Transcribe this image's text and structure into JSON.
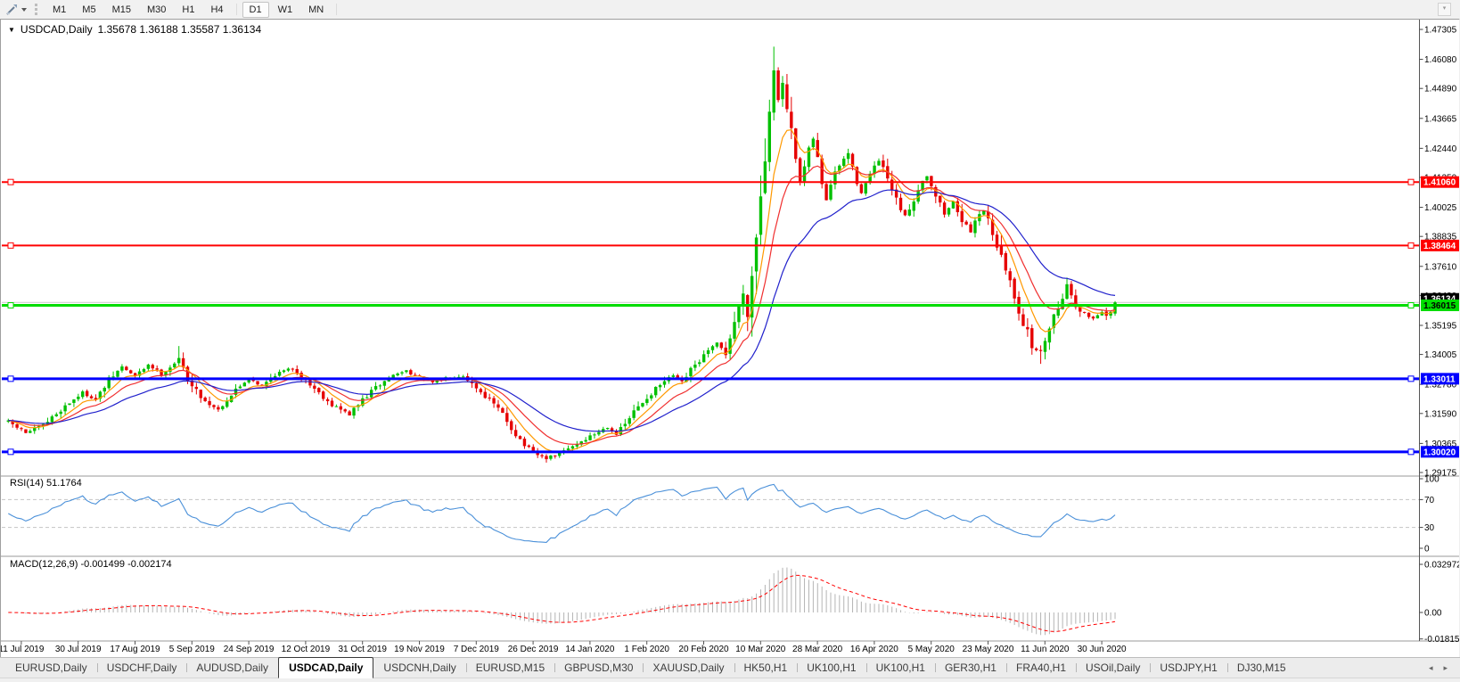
{
  "toolbar": {
    "tool_icon": "chart-annotation-tool-icon",
    "dropdown_icon": "caret-down-icon",
    "timeframes": [
      "M1",
      "M5",
      "M15",
      "M30",
      "H1",
      "H4",
      "D1",
      "W1",
      "MN"
    ],
    "active_timeframe": "D1"
  },
  "chart": {
    "title": {
      "marker": "▼",
      "symbol_period": "USDCAD,Daily",
      "ohlc": "1.35678 1.36188 1.35587 1.36134"
    },
    "price_axis": {
      "tick_labels": [
        "1.47305",
        "1.46080",
        "1.44890",
        "1.43665",
        "1.42440",
        "1.41250",
        "1.40025",
        "1.38835",
        "1.37610",
        "1.36420",
        "1.35195",
        "1.34005",
        "1.32780",
        "1.31590",
        "1.30365",
        "1.29175"
      ]
    },
    "date_axis": {
      "tick_labels": [
        "11 Jul 2019",
        "30 Jul 2019",
        "17 Aug 2019",
        "5 Sep 2019",
        "24 Sep 2019",
        "12 Oct 2019",
        "31 Oct 2019",
        "19 Nov 2019",
        "7 Dec 2019",
        "26 Dec 2019",
        "14 Jan 2020",
        "1 Feb 2020",
        "20 Feb 2020",
        "10 Mar 2020",
        "28 Mar 2020",
        "16 Apr 2020",
        "5 May 2020",
        "23 May 2020",
        "11 Jun 2020",
        "30 Jun 2020"
      ]
    },
    "current_price": {
      "value": 1.36134,
      "label": "1.36134",
      "chip_color": "#000000",
      "text_color": "#FFFFFF"
    },
    "rsi": {
      "label": "RSI(14) 51.1764",
      "axis_labels": [
        "100",
        "70",
        "30",
        "0"
      ],
      "axis_values": [
        100,
        70,
        30,
        0
      ],
      "level_lines": [
        70,
        30
      ],
      "line_color": "#4A90D9"
    },
    "macd": {
      "label": "MACD(12,26,9) -0.001499 -0.002174",
      "axis_labels": [
        "0.032972",
        "0.00",
        "-0.01815"
      ],
      "axis_values": [
        0.032972,
        0,
        -0.01815
      ],
      "histogram_color": "#b4b4b4",
      "signal_color": "#FF0000"
    }
  },
  "chart_data": {
    "type": "candlestick",
    "symbol": "USDCAD",
    "period": "Daily",
    "last_ohlc": {
      "open": 1.35678,
      "high": 1.36188,
      "low": 1.35587,
      "close": 1.36134
    },
    "y_range": {
      "min": 1.29175,
      "max": 1.47305
    },
    "x_range": {
      "start": "11 Jul 2019",
      "end": "early Jul 2020"
    },
    "candle_count": 254,
    "colors": {
      "bull": "#00C000",
      "bear": "#E60000",
      "bid_line": "#C8C8C8"
    },
    "moving_averages": [
      {
        "name": "fast-ma",
        "period": 7,
        "color": "#FF9900"
      },
      {
        "name": "medium-ma",
        "period": 14,
        "color": "#F03030"
      },
      {
        "name": "slow-ma",
        "period": 30,
        "color": "#2121CC"
      }
    ],
    "horizontal_lines": [
      {
        "price": 1.4106,
        "label": "1.41060",
        "color": "#FF0000",
        "width": 2,
        "label_text_color": "#FFFFFF"
      },
      {
        "price": 1.38464,
        "label": "1.38464",
        "color": "#FF0000",
        "width": 2,
        "label_text_color": "#FFFFFF"
      },
      {
        "price": 1.36015,
        "label": "1.36015",
        "color": "#00DC00",
        "width": 3,
        "label_text_color": "#000000"
      },
      {
        "price": 1.33011,
        "label": "1.33011",
        "color": "#0000FF",
        "width": 3,
        "label_text_color": "#FFFFFF"
      },
      {
        "price": 1.3002,
        "label": "1.30020",
        "color": "#0000FF",
        "width": 3,
        "label_text_color": "#FFFFFF"
      }
    ],
    "price_path_anchors": [
      [
        0,
        1.3125
      ],
      [
        4,
        1.308
      ],
      [
        8,
        1.311
      ],
      [
        13,
        1.319
      ],
      [
        17,
        1.3245
      ],
      [
        20,
        1.3215
      ],
      [
        23,
        1.3295
      ],
      [
        26,
        1.335
      ],
      [
        29,
        1.331
      ],
      [
        32,
        1.336
      ],
      [
        35,
        1.332
      ],
      [
        39,
        1.338
      ],
      [
        42,
        1.327
      ],
      [
        45,
        1.321
      ],
      [
        48,
        1.3175
      ],
      [
        52,
        1.3255
      ],
      [
        55,
        1.3305
      ],
      [
        58,
        1.327
      ],
      [
        61,
        1.332
      ],
      [
        65,
        1.3345
      ],
      [
        68,
        1.3295
      ],
      [
        71,
        1.3245
      ],
      [
        74,
        1.3195
      ],
      [
        78,
        1.3155
      ],
      [
        81,
        1.3215
      ],
      [
        84,
        1.3265
      ],
      [
        88,
        1.3315
      ],
      [
        91,
        1.3335
      ],
      [
        94,
        1.3305
      ],
      [
        97,
        1.3285
      ],
      [
        100,
        1.3305
      ],
      [
        104,
        1.3315
      ],
      [
        107,
        1.3265
      ],
      [
        110,
        1.3215
      ],
      [
        113,
        1.3155
      ],
      [
        116,
        1.3075
      ],
      [
        118,
        1.303
      ],
      [
        120,
        1.2995
      ],
      [
        123,
        1.2975
      ],
      [
        126,
        1.2995
      ],
      [
        129,
        1.3025
      ],
      [
        131,
        1.3045
      ],
      [
        134,
        1.3075
      ],
      [
        137,
        1.3105
      ],
      [
        139,
        1.3075
      ],
      [
        141,
        1.3115
      ],
      [
        143,
        1.3165
      ],
      [
        146,
        1.3225
      ],
      [
        149,
        1.3275
      ],
      [
        152,
        1.3315
      ],
      [
        154,
        1.3285
      ],
      [
        156,
        1.3335
      ],
      [
        159,
        1.3395
      ],
      [
        162,
        1.3445
      ],
      [
        164,
        1.3405
      ],
      [
        166,
        1.3535
      ],
      [
        168,
        1.3655
      ],
      [
        169,
        1.3585
      ],
      [
        170,
        1.3725
      ],
      [
        171,
        1.3905
      ],
      [
        172,
        1.4055
      ],
      [
        173,
        1.4235
      ],
      [
        174,
        1.4425
      ],
      [
        175,
        1.4585
      ],
      [
        176,
        1.4435
      ],
      [
        177,
        1.4515
      ],
      [
        178,
        1.4385
      ],
      [
        179,
        1.4295
      ],
      [
        180,
        1.4185
      ],
      [
        181,
        1.4105
      ],
      [
        182,
        1.4165
      ],
      [
        183,
        1.4235
      ],
      [
        184,
        1.4285
      ],
      [
        185,
        1.4195
      ],
      [
        186,
        1.4105
      ],
      [
        187,
        1.4035
      ],
      [
        188,
        1.4095
      ],
      [
        190,
        1.4175
      ],
      [
        192,
        1.4225
      ],
      [
        193,
        1.4155
      ],
      [
        195,
        1.4065
      ],
      [
        197,
        1.4135
      ],
      [
        199,
        1.4195
      ],
      [
        201,
        1.4115
      ],
      [
        203,
        1.4025
      ],
      [
        205,
        1.3965
      ],
      [
        207,
        1.4035
      ],
      [
        208,
        1.4085
      ],
      [
        210,
        1.4135
      ],
      [
        212,
        1.4055
      ],
      [
        214,
        1.3975
      ],
      [
        216,
        1.4025
      ],
      [
        218,
        1.3955
      ],
      [
        220,
        1.3895
      ],
      [
        221,
        1.3955
      ],
      [
        223,
        1.3995
      ],
      [
        225,
        1.3905
      ],
      [
        227,
        1.3795
      ],
      [
        229,
        1.3695
      ],
      [
        231,
        1.3585
      ],
      [
        233,
        1.3485
      ],
      [
        234,
        1.3435
      ],
      [
        236,
        1.3405
      ],
      [
        238,
        1.3525
      ],
      [
        240,
        1.3595
      ],
      [
        242,
        1.3685
      ],
      [
        244,
        1.3605
      ],
      [
        246,
        1.3565
      ],
      [
        248,
        1.3548
      ],
      [
        250,
        1.3578
      ],
      [
        251,
        1.3558
      ],
      [
        252,
        1.3568
      ],
      [
        253,
        1.36134
      ]
    ],
    "wick_overrides": [
      {
        "i": 39,
        "h": 1.3435
      },
      {
        "i": 123,
        "l": 1.2958
      },
      {
        "i": 175,
        "h": 1.466
      },
      {
        "i": 236,
        "l": 1.3362
      },
      {
        "i": 242,
        "h": 1.3715
      }
    ],
    "indicators": [
      {
        "name": "RSI",
        "params": [
          14
        ],
        "current_value": 51.1764,
        "levels": [
          70,
          30
        ]
      },
      {
        "name": "MACD",
        "params": [
          12,
          26,
          9
        ],
        "current_values": [
          -0.001499,
          -0.002174
        ],
        "axis_max": 0.032972,
        "axis_min": -0.01815
      }
    ]
  },
  "tabs": {
    "items": [
      "EURUSD,Daily",
      "USDCHF,Daily",
      "AUDUSD,Daily",
      "USDCAD,Daily",
      "USDCNH,Daily",
      "EURUSD,M15",
      "GBPUSD,M30",
      "XAUUSD,Daily",
      "HK50,H1",
      "UK100,H1",
      "UK100,H1",
      "GER30,H1",
      "FRA40,H1",
      "USOil,Daily",
      "USDJPY,H1",
      "DJ30,M15"
    ],
    "active_index": 3,
    "scroll_left": "◂",
    "scroll_right": "▸"
  }
}
